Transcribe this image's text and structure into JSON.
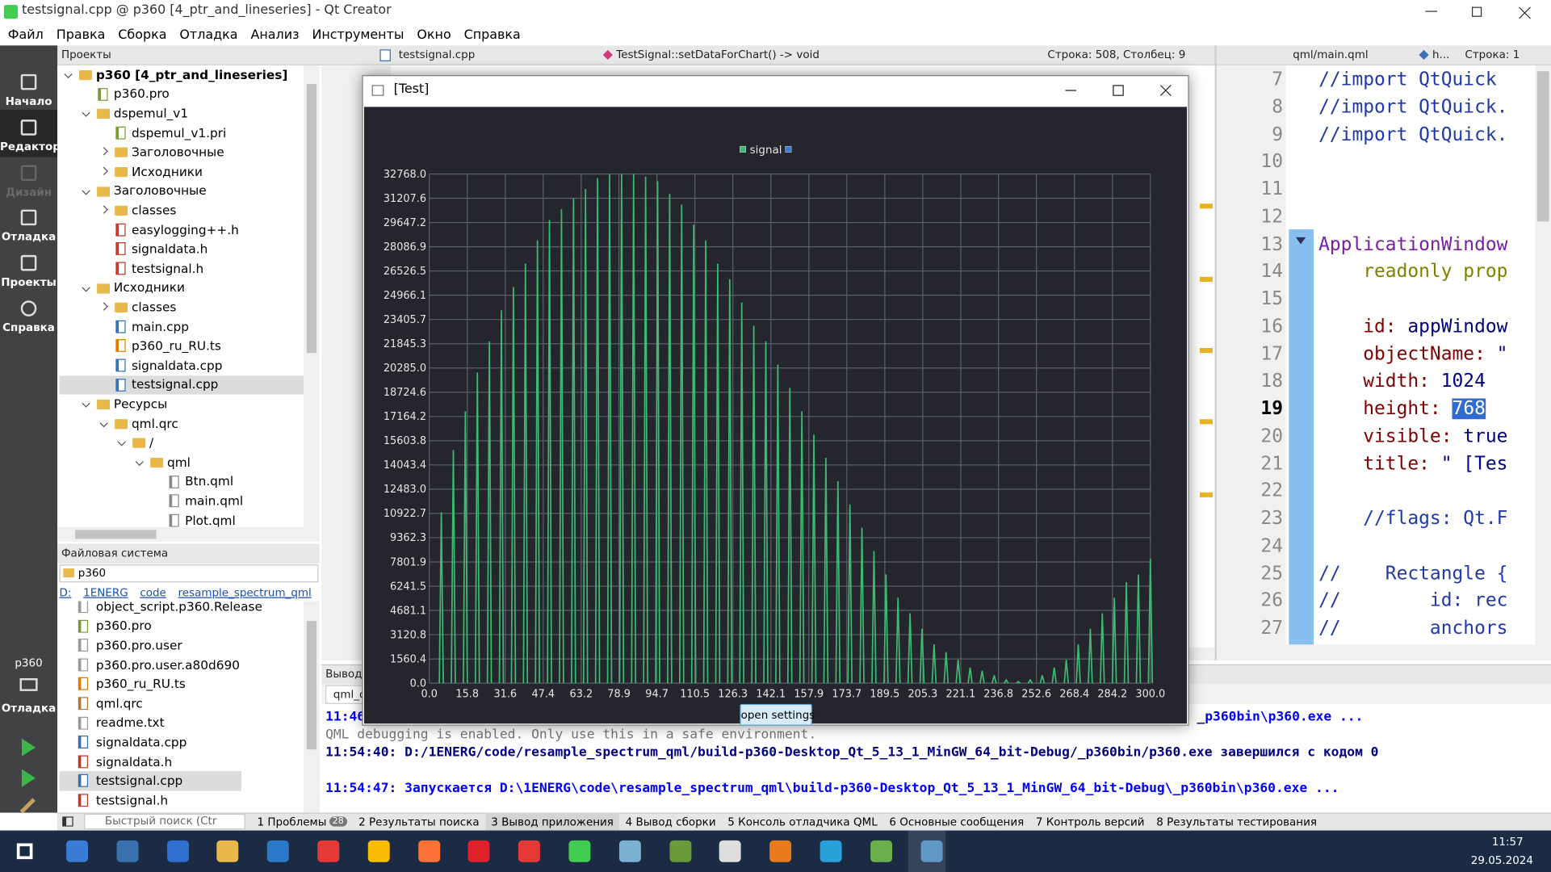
{
  "window": {
    "title": "testsignal.cpp @ p360 [4_ptr_and_lineseries] - Qt Creator",
    "menu": [
      "Файл",
      "Правка",
      "Сборка",
      "Отладка",
      "Анализ",
      "Инструменты",
      "Окно",
      "Справка"
    ]
  },
  "modes": [
    {
      "label": "Начало"
    },
    {
      "label": "Редактор",
      "selected": true
    },
    {
      "label": "Дизайн",
      "disabled": true
    },
    {
      "label": "Отладка"
    },
    {
      "label": "Проекты"
    },
    {
      "label": "Справка"
    }
  ],
  "kit": {
    "project": "p360",
    "mode": "Отладка"
  },
  "projects": {
    "title": "Проекты",
    "tree": [
      {
        "label": "p360 [4_ptr_and_lineseries]",
        "expanded": true,
        "children": [
          {
            "label": "p360.pro"
          },
          {
            "label": "dspemul_v1",
            "expanded": true,
            "children": [
              {
                "label": "dspemul_v1.pri"
              },
              {
                "label": "Заголовочные",
                "expanded": false
              },
              {
                "label": "Исходники",
                "expanded": false
              }
            ]
          },
          {
            "label": "Заголовочные",
            "expanded": true,
            "children": [
              {
                "label": "classes",
                "expanded": false
              },
              {
                "label": "easylogging++.h"
              },
              {
                "label": "signaldata.h"
              },
              {
                "label": "testsignal.h"
              }
            ]
          },
          {
            "label": "Исходники",
            "expanded": true,
            "children": [
              {
                "label": "classes",
                "expanded": false
              },
              {
                "label": "main.cpp"
              },
              {
                "label": "p360_ru_RU.ts"
              },
              {
                "label": "signaldata.cpp"
              },
              {
                "label": "testsignal.cpp",
                "selected": true
              }
            ]
          },
          {
            "label": "Ресурсы",
            "expanded": true,
            "children": [
              {
                "label": "qml.qrc",
                "expanded": true,
                "children": [
                  {
                    "label": "/",
                    "expanded": true,
                    "children": [
                      {
                        "label": "qml",
                        "expanded": true,
                        "children": [
                          {
                            "label": "Btn.qml"
                          },
                          {
                            "label": "main.qml"
                          },
                          {
                            "label": "Plot.qml"
                          }
                        ]
                      }
                    ]
                  }
                ]
              }
            ]
          }
        ]
      }
    ]
  },
  "filesystem": {
    "title": "Файловая система",
    "folder": "p360",
    "path": [
      "D:",
      "1ENERG",
      "code",
      "resample_spectrum_qml",
      "p360"
    ],
    "files": [
      {
        "label": "object_script.p360.Release"
      },
      {
        "label": "p360.pro"
      },
      {
        "label": "p360.pro.user"
      },
      {
        "label": "p360.pro.user.a80d690"
      },
      {
        "label": "p360_ru_RU.ts"
      },
      {
        "label": "qml.qrc"
      },
      {
        "label": "readme.txt"
      },
      {
        "label": "signaldata.cpp"
      },
      {
        "label": "signaldata.h"
      },
      {
        "label": "testsignal.cpp",
        "selected": true
      },
      {
        "label": "testsignal.h"
      }
    ]
  },
  "left_editor": {
    "file": "testsignal.cpp",
    "symbol": "TestSignal::setDataForChart() -> void",
    "position": "Строка: 508, Столбец: 9"
  },
  "right_editor": {
    "file": "qml/main.qml",
    "symbol": "h...",
    "position": "Строка: 1",
    "current": 19,
    "lines": [
      {
        "n": 7,
        "code": "//import QtQuick"
      },
      {
        "n": 8,
        "code": "//import QtQuick."
      },
      {
        "n": 9,
        "code": "//import QtQuick."
      },
      {
        "n": 10
      },
      {
        "n": 11
      },
      {
        "n": 12
      },
      {
        "n": 13,
        "code": "ApplicationWindow"
      },
      {
        "n": 14,
        "code": "    readonly prop"
      },
      {
        "n": 15
      },
      {
        "n": 16,
        "code": "    id: appWindow"
      },
      {
        "n": 17,
        "code": "    objectName: \""
      },
      {
        "n": 18,
        "code": "    width: 1024"
      },
      {
        "n": 19,
        "code": "    height: ",
        "selected": "768"
      },
      {
        "n": 20,
        "code": "    visible: true"
      },
      {
        "n": 21,
        "code": "    title: \" [Tes"
      },
      {
        "n": 22
      },
      {
        "n": 23,
        "code": "    //flags: Qt.F"
      },
      {
        "n": 24
      },
      {
        "n": 25,
        "code": "//    Rectangle {"
      },
      {
        "n": 26,
        "code": "//        id: rec"
      },
      {
        "n": 27,
        "code": "//        anchors"
      }
    ]
  },
  "output": {
    "title": "Вывод п",
    "tab": "qml_c",
    "messages": [
      {
        "text": "11:46",
        "end": "_p360bin\\p360.exe ...",
        "kind": "start"
      },
      {
        "text": "QML debugging is enabled. Only use this in a safe environment.",
        "kind": "debug"
      },
      {
        "text": "11:54:40: D:/1ENERG/code/resample_spectrum_qml/build-p360-Desktop_Qt_5_13_1_MinGW_64_bit-Debug/_p360bin/p360.exe завершился с кодом 0",
        "kind": "exit"
      },
      {
        "text": "11:54:47: Запускается D:\\1ENERG\\code\\resample_spectrum_qml\\build-p360-Desktop_Qt_5_13_1_MinGW_64_bit-Debug\\_p360bin\\p360.exe ...",
        "kind": "start"
      }
    ]
  },
  "statusbar": {
    "search": "Быстрый поиск (Ctr",
    "tabs": [
      {
        "label": "1 Проблемы",
        "badge": 28
      },
      {
        "label": "2 Результаты поиска"
      },
      {
        "label": "3 Вывод приложения",
        "selected": true
      },
      {
        "label": "4 Вывод сборки"
      },
      {
        "label": "5 Консоль отладчика QML"
      },
      {
        "label": "6 Основные сообщения"
      },
      {
        "label": "7 Контроль версий"
      },
      {
        "label": "8 Результаты тестирования"
      }
    ]
  },
  "taskbar": {
    "time": "11:57",
    "date": "29.05.2024"
  },
  "test_window": {
    "title": "[Test]",
    "button": "open settings"
  },
  "chart_data": {
    "type": "stem",
    "grid": true,
    "background": "#25262d",
    "xlim": [
      0,
      300
    ],
    "ylim": [
      0,
      32768
    ],
    "xticks": [
      {
        "value": 0,
        "label": "0.0"
      },
      15.8,
      31.6,
      47.4,
      63.2,
      78.9,
      94.7,
      110.5,
      126.3,
      142.1,
      157.9,
      173.7,
      189.5,
      205.3,
      221.1,
      236.8,
      252.6,
      268.4,
      284.2,
      {
        "value": 300,
        "label": "300.0"
      }
    ],
    "yticks": [
      {
        "value": 0,
        "label": "0.0"
      },
      1560.4,
      3120.8,
      4681.1,
      6241.5,
      7801.9,
      9362.3,
      10922.7,
      {
        "value": 12483,
        "label": "12483.0"
      },
      14043.4,
      15603.8,
      17164.2,
      18724.6,
      {
        "value": 20285,
        "label": "20285.0"
      },
      21845.3,
      23405.7,
      24966.1,
      26526.5,
      28086.9,
      29647.2,
      31207.6,
      {
        "value": 32768,
        "label": "32768.0"
      }
    ],
    "series": [
      {
        "name": "signal",
        "color": "#3dba72",
        "x": [
          5,
          10,
          15,
          20,
          25,
          30,
          35,
          40,
          45,
          50,
          55,
          60,
          65,
          70,
          75,
          80,
          85,
          90,
          95,
          100,
          105,
          110,
          115,
          120,
          125,
          130,
          135,
          140,
          145,
          150,
          155,
          160,
          165,
          170,
          175,
          180,
          185,
          190,
          195,
          200,
          205,
          210,
          215,
          220,
          225,
          230,
          235,
          240,
          245,
          250,
          255,
          260,
          265,
          270,
          275,
          280,
          285,
          290,
          295,
          300
        ],
        "values": [
          11000,
          15000,
          17500,
          20000,
          22000,
          24000,
          25500,
          27000,
          28500,
          29800,
          30500,
          31200,
          31800,
          32500,
          32768,
          32768,
          32768,
          32600,
          32300,
          31500,
          30800,
          29500,
          28500,
          27000,
          26000,
          24500,
          23000,
          22000,
          20500,
          19000,
          17500,
          16000,
          14500,
          13000,
          11500,
          10000,
          8500,
          7000,
          5500,
          4500,
          3500,
          2500,
          2000,
          1500,
          1000,
          800,
          500,
          200,
          100,
          200,
          500,
          1000,
          1500,
          2500,
          3500,
          4500,
          5500,
          6500,
          7000,
          8000
        ]
      }
    ]
  }
}
